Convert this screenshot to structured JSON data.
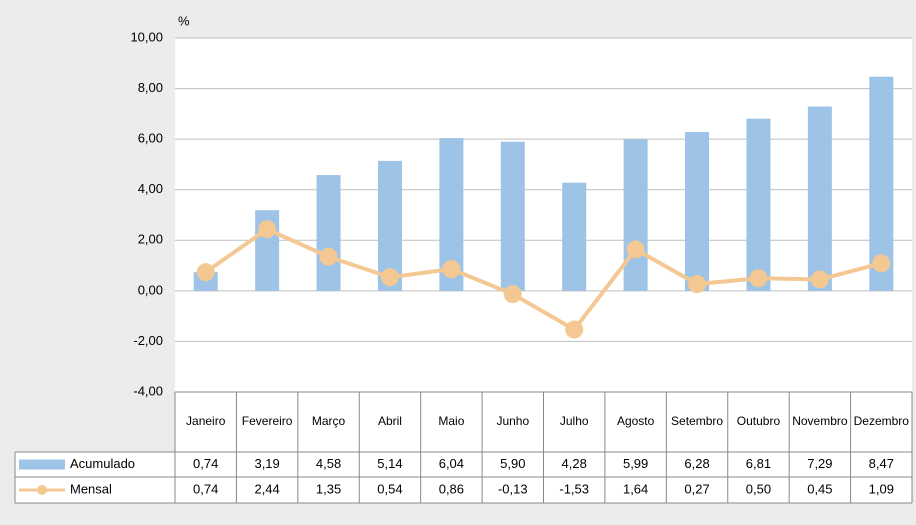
{
  "chart_data": {
    "type": "bar",
    "y_unit": "%",
    "categories": [
      "Janeiro",
      "Fevereiro",
      "Março",
      "Abril",
      "Maio",
      "Junho",
      "Julho",
      "Agosto",
      "Setembro",
      "Outubro",
      "Novembro",
      "Dezembro"
    ],
    "series": [
      {
        "name": "Acumulado",
        "type": "bar",
        "color": "#9dc3e6",
        "values": [
          0.74,
          3.19,
          4.58,
          5.14,
          6.04,
          5.9,
          4.28,
          5.99,
          6.28,
          6.81,
          7.29,
          8.47
        ],
        "value_labels": [
          "0,74",
          "3,19",
          "4,58",
          "5,14",
          "6,04",
          "5,90",
          "4,28",
          "5,99",
          "6,28",
          "6,81",
          "7,29",
          "8,47"
        ]
      },
      {
        "name": "Mensal",
        "type": "line",
        "color": "#f4c892",
        "values": [
          0.74,
          2.44,
          1.35,
          0.54,
          0.86,
          -0.13,
          -1.53,
          1.64,
          0.27,
          0.5,
          0.45,
          1.09
        ],
        "value_labels": [
          "0,74",
          "2,44",
          "1,35",
          "0,54",
          "0,86",
          "-0,13",
          "-1,53",
          "1,64",
          "0,27",
          "0,50",
          "0,45",
          "1,09"
        ]
      }
    ],
    "ylim": [
      -4,
      10
    ],
    "yticks": [
      {
        "value": -4,
        "label": "-4,00"
      },
      {
        "value": -2,
        "label": "-2,00"
      },
      {
        "value": 0,
        "label": "0,00"
      },
      {
        "value": 2,
        "label": "2,00"
      },
      {
        "value": 4,
        "label": "4,00"
      },
      {
        "value": 6,
        "label": "6,00"
      },
      {
        "value": 8,
        "label": "8,00"
      },
      {
        "value": 10,
        "label": "10,00"
      }
    ],
    "grid": true
  }
}
